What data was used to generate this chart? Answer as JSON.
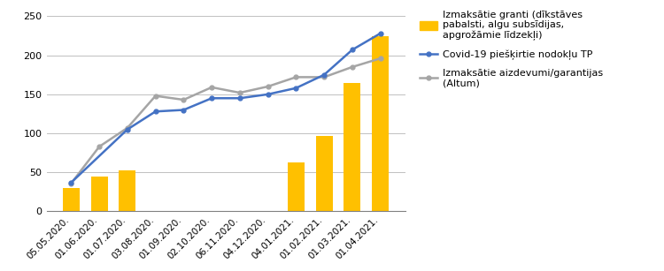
{
  "categories": [
    "05.05.2020.",
    "01.06.2020.",
    "01.07.2020.",
    "03.08.2020.",
    "01.09.2020.",
    "02.10.2020.",
    "06.11.2020.",
    "04.12.2020.",
    "04.01.2021.",
    "01.02.2021.",
    "01.03.2021.",
    "01.04.2021."
  ],
  "bars": [
    30,
    45,
    53,
    0,
    0,
    0,
    0,
    0,
    63,
    97,
    165,
    225
  ],
  "bars_visible": [
    1,
    1,
    1,
    0,
    0,
    0,
    0,
    0,
    1,
    1,
    1,
    1
  ],
  "blue_line": [
    37,
    null,
    105,
    128,
    130,
    145,
    145,
    150,
    158,
    175,
    207,
    228
  ],
  "gray_line": [
    36,
    83,
    107,
    148,
    143,
    159,
    152,
    160,
    172,
    172,
    185,
    196
  ],
  "bar_color": "#FFC000",
  "blue_color": "#4472C4",
  "gray_color": "#A5A5A5",
  "ylim": [
    0,
    250
  ],
  "yticks": [
    0,
    50,
    100,
    150,
    200,
    250
  ],
  "legend_granti": "Izmaksātie granti (dīkstāves\npabalsti, algu subsīdijas,\napgrožāmie līdzekļi)",
  "legend_blue": "Covid-19 piešķirtie nodokļu TP",
  "legend_gray": "Izmaksātie aizdevumi/garantijas\n(Altum)"
}
